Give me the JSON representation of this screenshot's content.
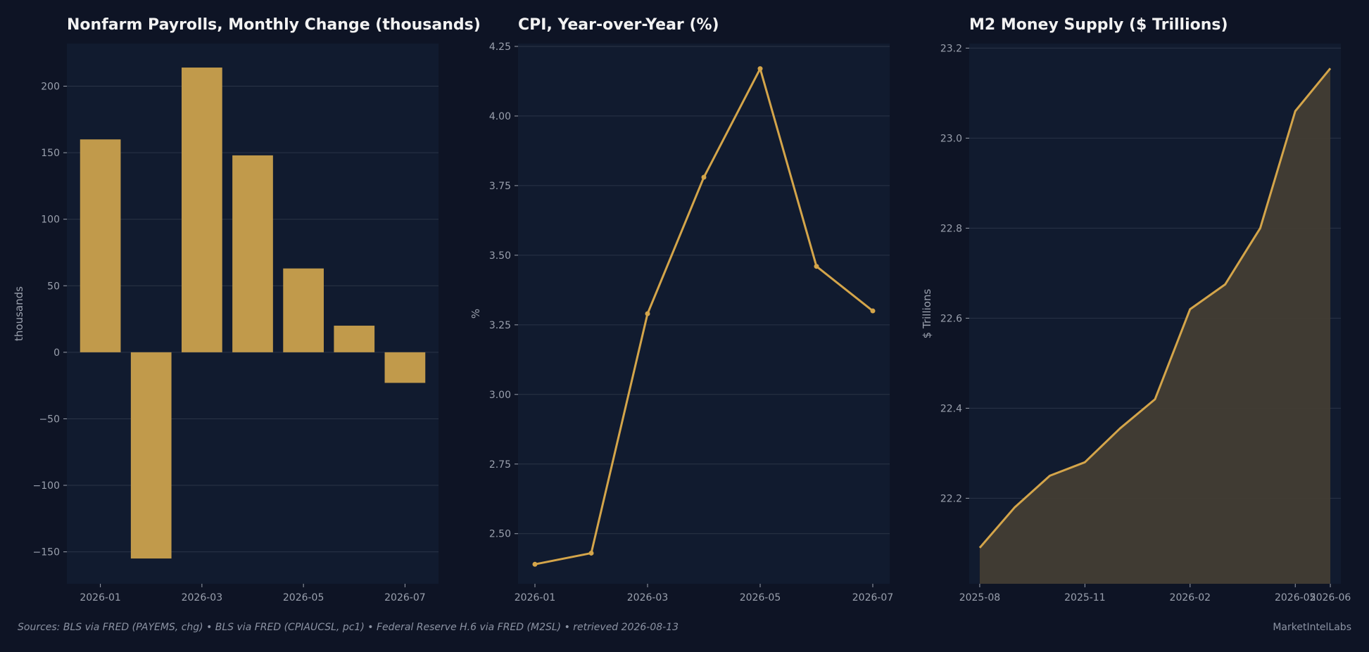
{
  "theme": {
    "background": "#0e1425",
    "panel": "#111b2f",
    "grid": "#2a3447",
    "accent": "#d4a54a",
    "bar": "#c19a4b",
    "area_fill": "#433d34",
    "title_color": "#f2f2f2",
    "tick_color": "#9aa0ad"
  },
  "chart_data": [
    {
      "type": "bar",
      "title": "Nonfarm Payrolls, Monthly Change (thousands)",
      "ylabel": "thousands",
      "xlabel": "",
      "categories": [
        "2026-01",
        "2026-02",
        "2026-03",
        "2026-04",
        "2026-05",
        "2026-06",
        "2026-07"
      ],
      "values": [
        160,
        -155,
        214,
        148,
        63,
        20,
        -23
      ],
      "ylim": [
        -174,
        232
      ],
      "yticks": [
        -150,
        -100,
        -50,
        0,
        50,
        100,
        150,
        200
      ],
      "ytick_labels": [
        "−150",
        "−100",
        "−50",
        "0",
        "50",
        "100",
        "150",
        "200"
      ],
      "xticks": [
        "2026-01",
        "2026-03",
        "2026-05",
        "2026-07"
      ],
      "grid": true
    },
    {
      "type": "line",
      "title": "CPI, Year-over-Year (%)",
      "ylabel": "%",
      "xlabel": "",
      "x": [
        "2026-01",
        "2026-02",
        "2026-03",
        "2026-04",
        "2026-05",
        "2026-06",
        "2026-07"
      ],
      "values": [
        2.39,
        2.43,
        3.29,
        3.78,
        4.17,
        3.46,
        3.3
      ],
      "ylim": [
        2.32,
        4.26
      ],
      "yticks": [
        2.5,
        2.75,
        3.0,
        3.25,
        3.5,
        3.75,
        4.0,
        4.25
      ],
      "ytick_labels": [
        "2.50",
        "2.75",
        "3.00",
        "3.25",
        "3.50",
        "3.75",
        "4.00",
        "4.25"
      ],
      "xticks": [
        "2026-01",
        "2026-03",
        "2026-05",
        "2026-07"
      ],
      "markers": true,
      "grid": true
    },
    {
      "type": "area",
      "title": "M2 Money Supply ($ Trillions)",
      "ylabel": "$ Trillions",
      "xlabel": "",
      "x": [
        "2025-08",
        "2025-09",
        "2025-10",
        "2025-11",
        "2025-12",
        "2026-01",
        "2026-02",
        "2026-03",
        "2026-04",
        "2026-05",
        "2026-06"
      ],
      "values": [
        22.09,
        22.18,
        22.25,
        22.28,
        22.355,
        22.42,
        22.62,
        22.675,
        22.8,
        23.06,
        23.155
      ],
      "ylim": [
        22.01,
        23.21
      ],
      "yticks": [
        22.2,
        22.4,
        22.6,
        22.8,
        23.0,
        23.2
      ],
      "ytick_labels": [
        "22.2",
        "22.4",
        "22.6",
        "22.8",
        "23.0",
        "23.2"
      ],
      "xticks": [
        "2025-08",
        "2025-11",
        "2026-02",
        "2026-05",
        "2026-06"
      ],
      "grid": true
    }
  ],
  "footer": {
    "sources": "Sources: BLS via FRED (PAYEMS, chg)  •  BLS via FRED (CPIAUCSL, pc1)  •  Federal Reserve H.6 via FRED (M2SL)  •  retrieved 2026-08-13",
    "brand": "MarketIntelLabs"
  }
}
